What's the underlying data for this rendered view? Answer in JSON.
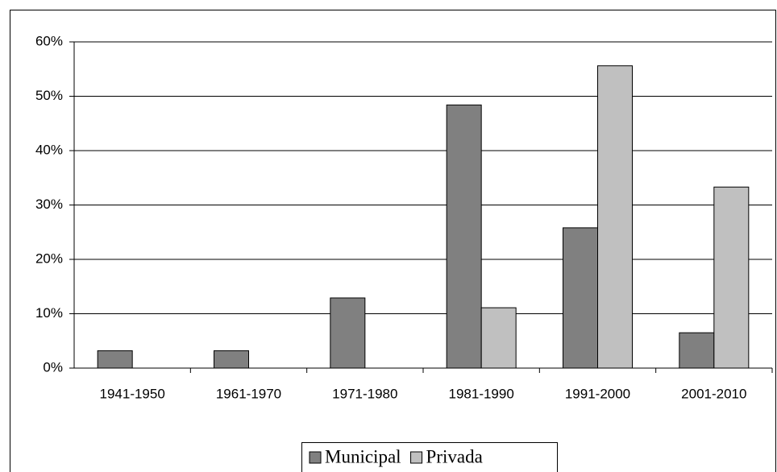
{
  "chart_data": {
    "type": "bar",
    "categories": [
      "1941-1950",
      "1961-1970",
      "1971-1980",
      "1981-1990",
      "1991-2000",
      "2001-2010"
    ],
    "series": [
      {
        "name": "Municipal",
        "color": "#808080",
        "values": [
          3.2,
          3.2,
          12.9,
          48.4,
          25.8,
          6.5
        ]
      },
      {
        "name": "Privada",
        "color": "#c0c0c0",
        "values": [
          0,
          0,
          0,
          11.1,
          55.6,
          33.3
        ]
      }
    ],
    "ylim": [
      0,
      60
    ],
    "yticks": [
      {
        "value": 0,
        "label": "0%"
      },
      {
        "value": 10,
        "label": "10%"
      },
      {
        "value": 20,
        "label": "20%"
      },
      {
        "value": 30,
        "label": "30%"
      },
      {
        "value": 40,
        "label": "40%"
      },
      {
        "value": 50,
        "label": "50%"
      },
      {
        "value": 60,
        "label": "60%"
      }
    ],
    "grid": true,
    "legend": "bottom"
  }
}
